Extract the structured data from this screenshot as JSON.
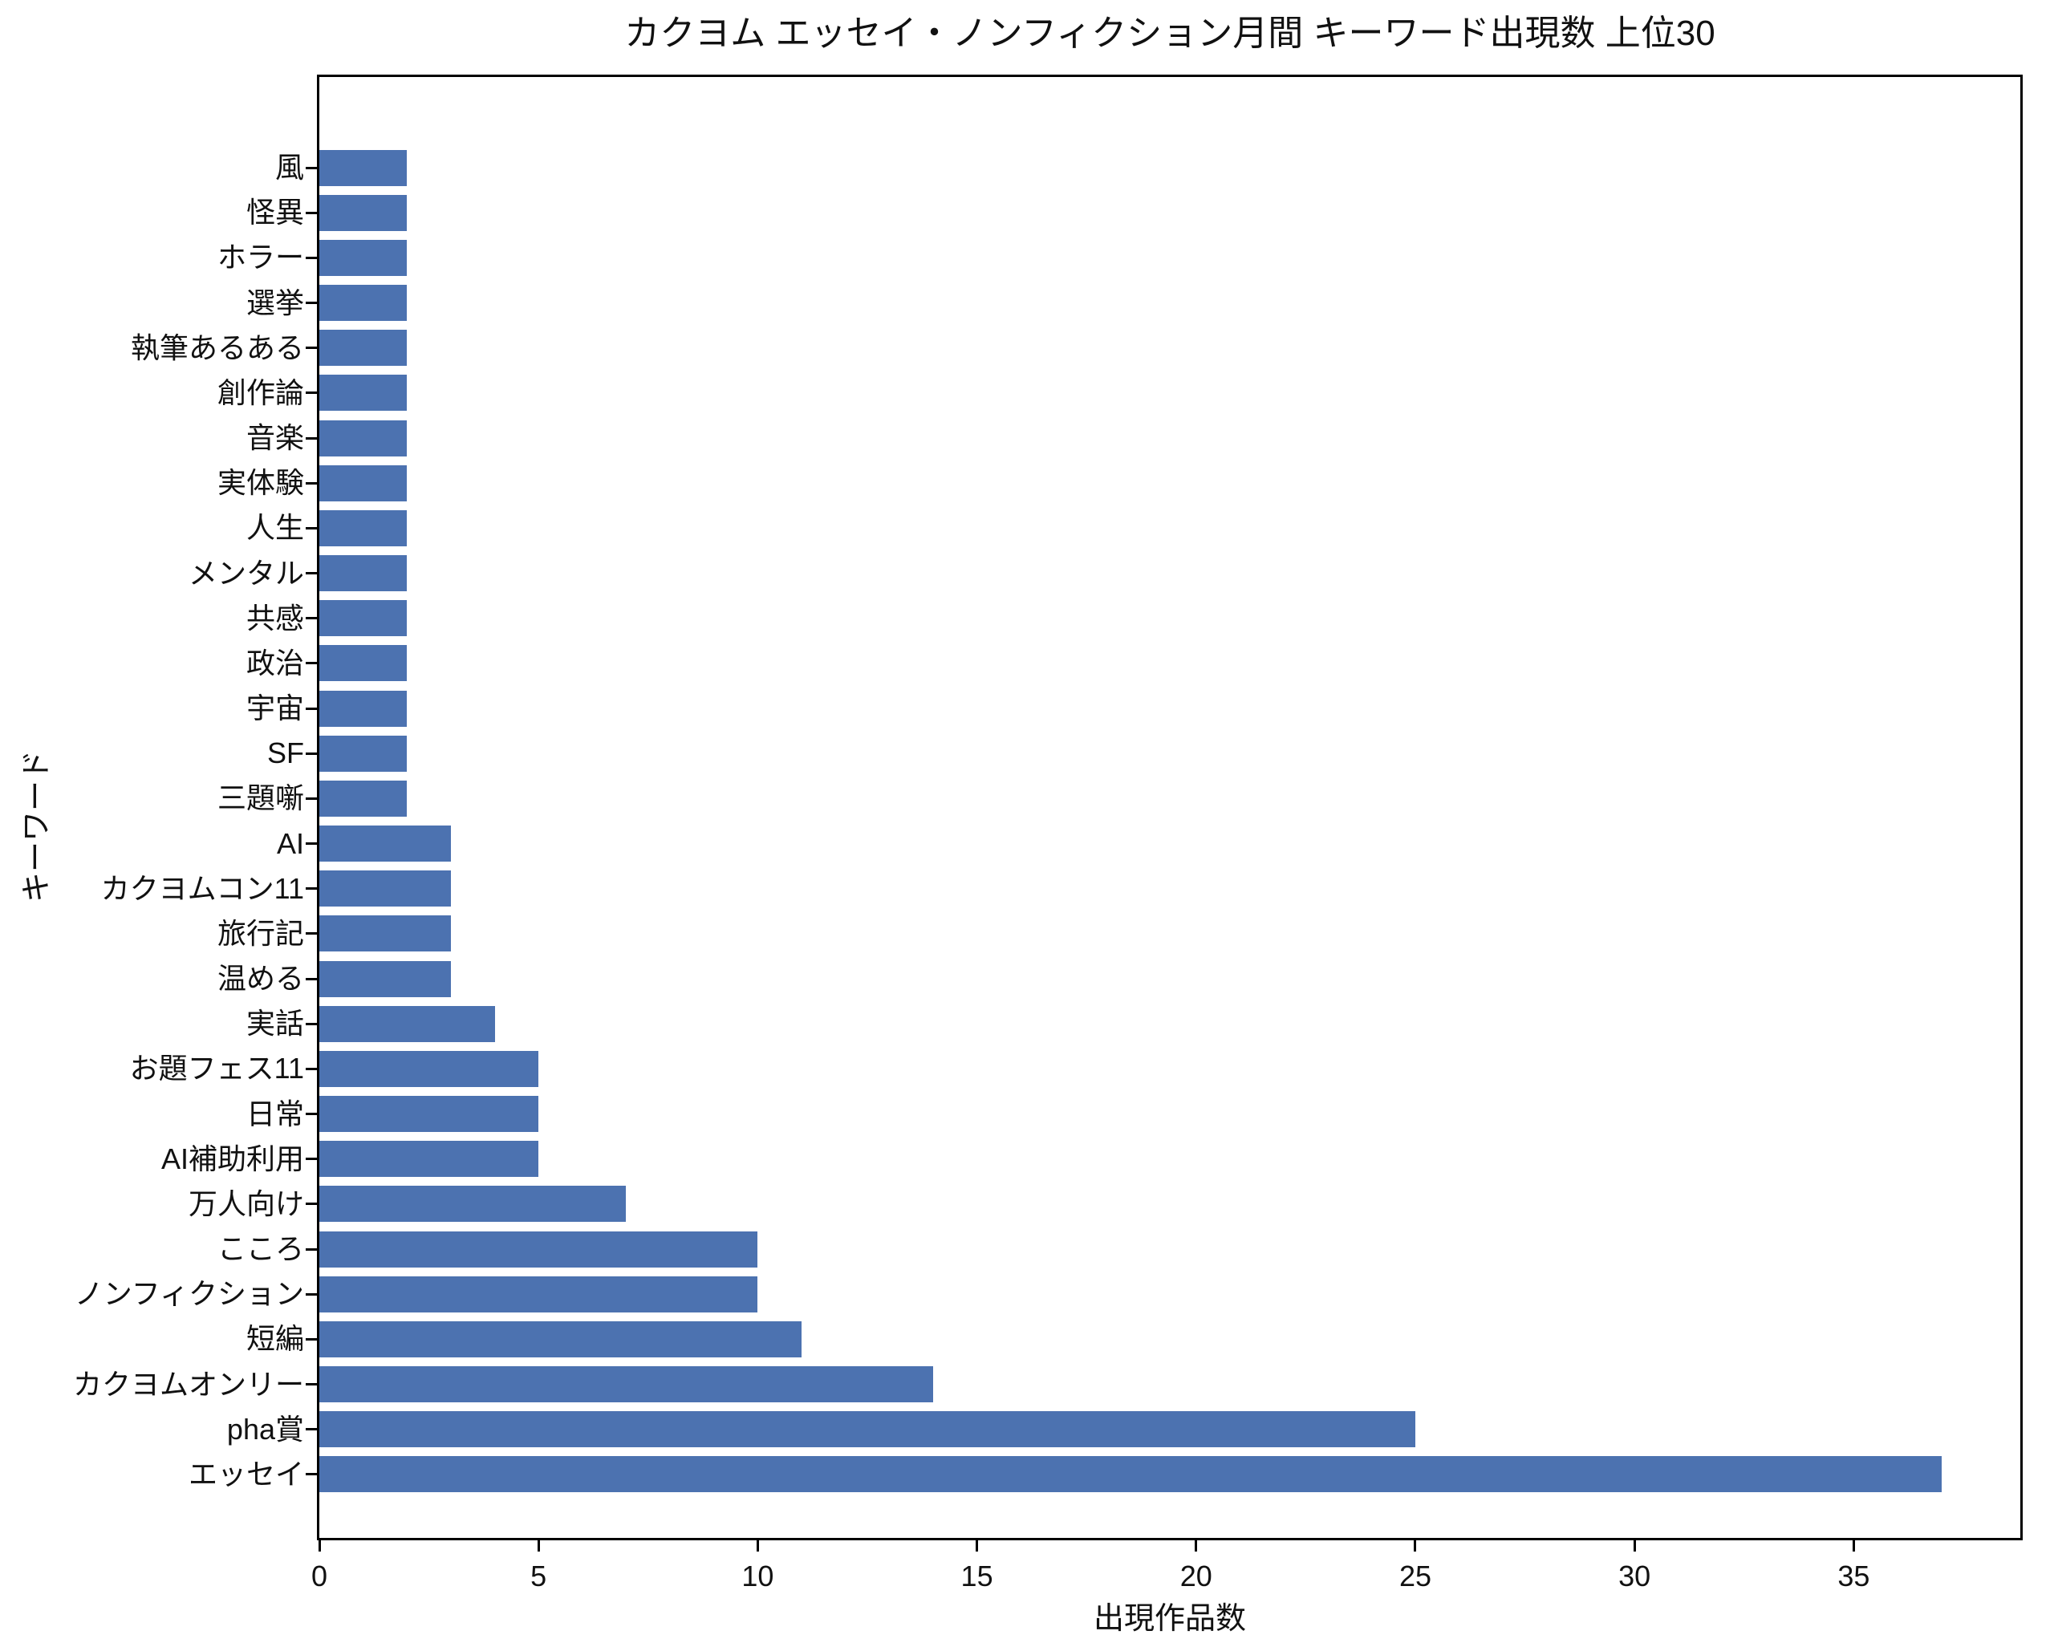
{
  "chart_data": {
    "type": "bar",
    "orientation": "horizontal",
    "title": "カクヨム エッセイ・ノンフィクション月間 キーワード出現数 上位30",
    "xlabel": "出現作品数",
    "ylabel": "キーワード",
    "categories_top_to_bottom": [
      "風",
      "怪異",
      "ホラー",
      "選挙",
      "執筆あるある",
      "創作論",
      "音楽",
      "実体験",
      "人生",
      "メンタル",
      "共感",
      "政治",
      "宇宙",
      "SF",
      "三題噺",
      "AI",
      "カクヨムコン11",
      "旅行記",
      "温める",
      "実話",
      "お題フェス11",
      "日常",
      "AI補助利用",
      "万人向け",
      "こころ",
      "ノンフィクション",
      "短編",
      "カクヨムオンリー",
      "pha賞",
      "エッセイ"
    ],
    "values_top_to_bottom": [
      2,
      2,
      2,
      2,
      2,
      2,
      2,
      2,
      2,
      2,
      2,
      2,
      2,
      2,
      2,
      3,
      3,
      3,
      3,
      4,
      5,
      5,
      5,
      7,
      10,
      10,
      11,
      14,
      25,
      37
    ],
    "xticks": [
      0,
      5,
      10,
      15,
      20,
      25,
      30,
      35
    ],
    "xlim": [
      0,
      38.8
    ],
    "bar_color": "#4c72b0",
    "background_color": "#ffffff",
    "spine_color": "#000000",
    "grid": false,
    "legend": null
  }
}
